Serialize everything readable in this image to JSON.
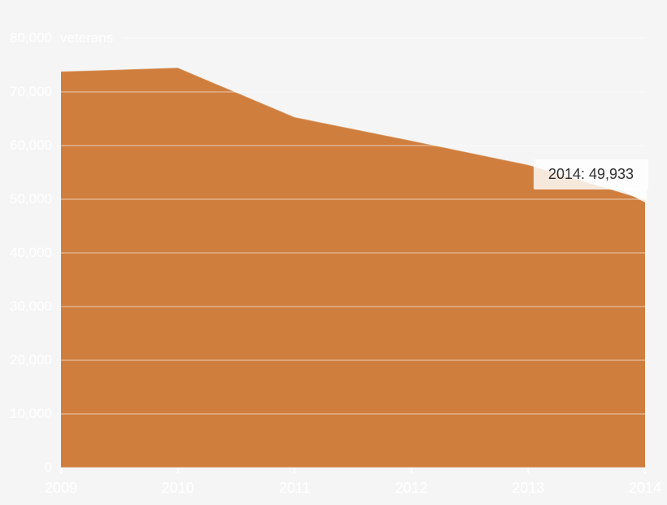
{
  "chart_data": {
    "type": "area",
    "title": "",
    "unit_label": "veterans",
    "x": [
      "2009",
      "2010",
      "2011",
      "2012",
      "2013",
      "2014"
    ],
    "series": [
      {
        "name": "veterans",
        "values": [
          73800,
          74500,
          65300,
          60900,
          56400,
          49933
        ]
      }
    ],
    "ylim": [
      0,
      80000
    ],
    "xlim": [
      "2009",
      "2014"
    ],
    "yticks": [
      0,
      10000,
      20000,
      30000,
      40000,
      50000,
      60000,
      70000,
      80000
    ],
    "y_tick_labels": [
      "0",
      "10,000",
      "20,000",
      "30,000",
      "40,000",
      "50,000",
      "60,000",
      "70,000",
      "80,000"
    ],
    "x_tick_labels": [
      "2009",
      "2010",
      "2011",
      "2012",
      "2013",
      "2014"
    ],
    "grid": true,
    "legend": "none",
    "annotations": [
      {
        "x": "2014",
        "value": 49933,
        "text": "2014: 49,933"
      }
    ],
    "colors": {
      "area": "#cf7e3e",
      "area_edge": "rgba(255,255,255,0.25)",
      "background": "#f5f5f5",
      "gridline": "rgba(255,255,255,0.3)",
      "tick": "rgba(255,255,255,0.9)",
      "axis_label": "#ffffff",
      "tooltip_bg": "rgba(255,255,255,0.82)",
      "tooltip_text": "#2f2f2f"
    }
  },
  "tooltip": {
    "label": "2014: 49,933"
  }
}
